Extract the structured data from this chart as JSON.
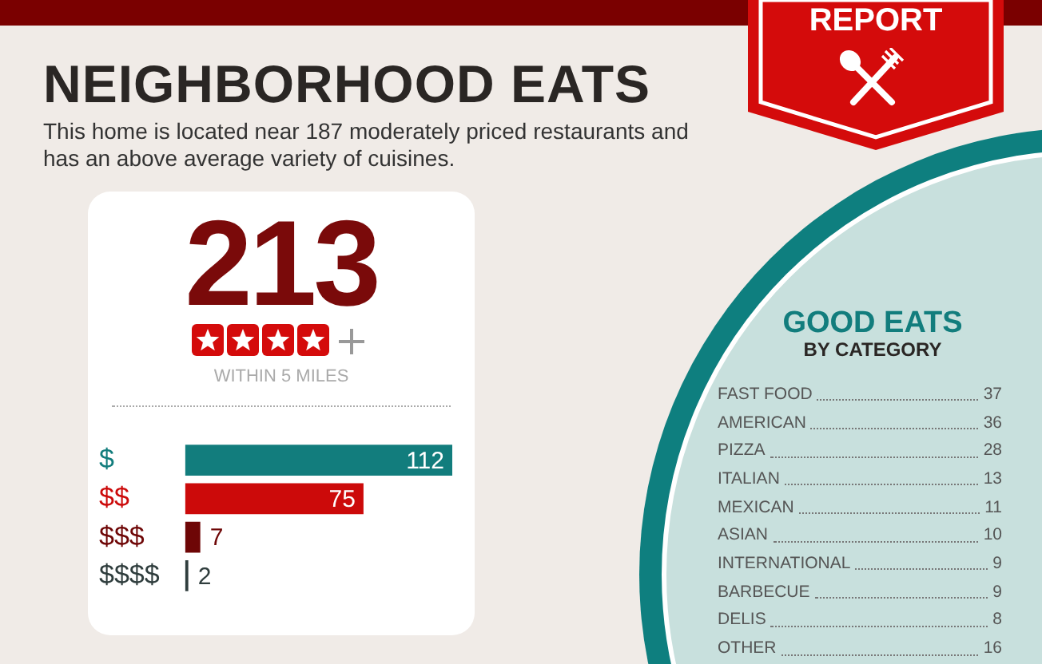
{
  "chart_data": [
    {
      "type": "bar",
      "orientation": "horizontal",
      "title": "NEIGHBORHOOD EATS",
      "subtitle": "This home is located near 187 moderately priced restaurants and has an above average variety of cuisines.",
      "annotations": [
        "213",
        "WITHIN 5 MILES",
        "REPORT"
      ],
      "categories": [
        "$",
        "$$",
        "$$$",
        "$$$$"
      ],
      "values": [
        112,
        75,
        7,
        2
      ],
      "colors": [
        "#127d7d",
        "#cc0a0a",
        "#6e0606",
        "#2f3d3d"
      ],
      "data_labels": true
    },
    {
      "type": "other",
      "title": "GOOD EATS",
      "subtitle": "BY CATEGORY",
      "categories": [
        "FAST FOOD",
        "AMERICAN",
        "PIZZA",
        "ITALIAN",
        "MEXICAN",
        "ASIAN",
        "INTERNATIONAL",
        "BARBECUE",
        "DELIS",
        "OTHER"
      ],
      "values": [
        37,
        36,
        28,
        13,
        11,
        10,
        9,
        9,
        8,
        16
      ],
      "data_labels": true
    }
  ]
}
